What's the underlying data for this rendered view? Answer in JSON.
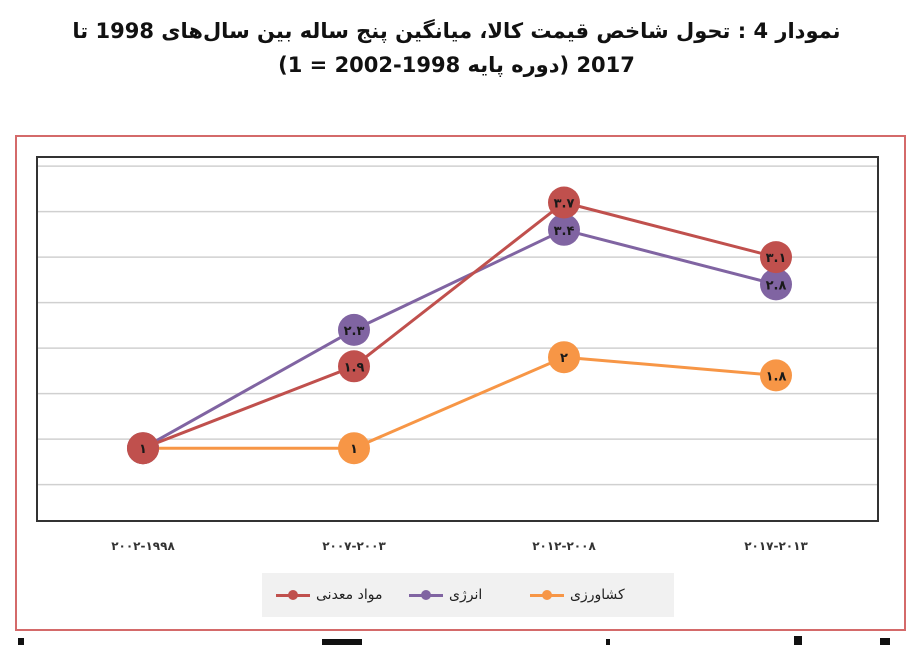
{
  "title_line1": "نمودار 4 : تحول شاخص قیمت کالا، میانگین پنج ساله بین سال‌های 1998 تا",
  "title_line2": "2017 (دوره پایه 1998-2002 = 1)",
  "chart_data": {
    "type": "line",
    "categories": [
      "۲۰۰۲-۱۹۹۸",
      "۲۰۰۷-۲۰۰۳",
      "۲۰۱۲-۲۰۰۸",
      "۲۰۱۷-۲۰۱۳"
    ],
    "ylim": [
      0.2,
      4.2
    ],
    "grid": true,
    "legend_position": "bottom",
    "series": [
      {
        "name": "مواد معدنی",
        "color": "#c0504d",
        "values": [
          1,
          1.9,
          3.7,
          3.1
        ],
        "labels": [
          "۱",
          "۱.۹",
          "۳.۷",
          "۳.۱"
        ]
      },
      {
        "name": "انرژی",
        "color": "#8064a2",
        "values": [
          1,
          2.3,
          3.4,
          2.8
        ],
        "labels": [
          "۱",
          "۲.۳",
          "۳.۴",
          "۲.۸"
        ]
      },
      {
        "name": "کشاورزی",
        "color": "#f79646",
        "values": [
          1,
          1,
          2,
          1.8
        ],
        "labels": [
          "۱",
          "۱",
          "۲",
          "۱.۸"
        ]
      }
    ]
  }
}
